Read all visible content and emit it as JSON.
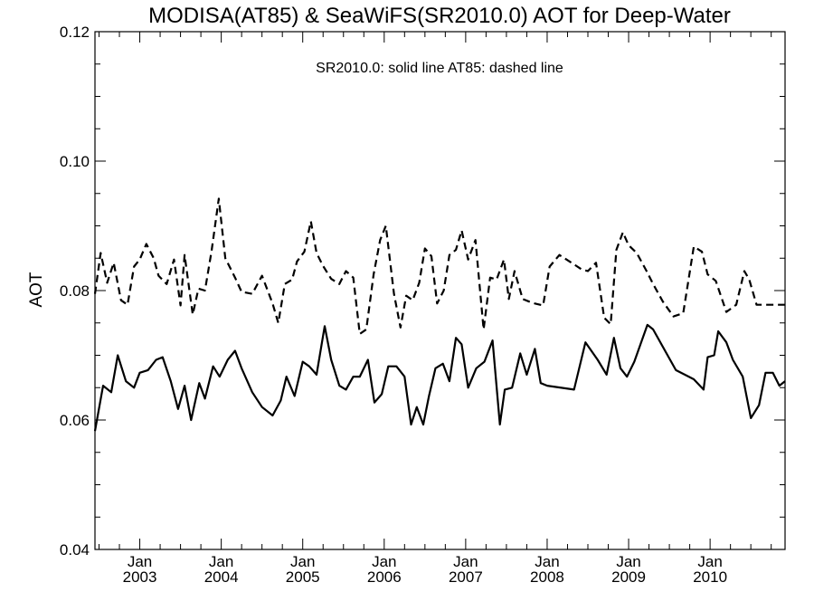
{
  "chart_data": {
    "type": "line",
    "title": "MODISA(AT85) & SeaWiFS(SR2010.0)  AOT for Deep-Water",
    "annotation": "SR2010.0: solid line   AT85: dashed line",
    "ylabel": "AOT",
    "xlabel": "",
    "x_unit": "years (decimal, 2003.0 = Jan 2003)",
    "xlim": [
      2002.45,
      2010.92
    ],
    "ylim": [
      0.04,
      0.12
    ],
    "yticks": [
      "0.04",
      "0.06",
      "0.08",
      "0.10",
      "0.12"
    ],
    "xticks": [
      {
        "x": 2003.0,
        "month": "Jan",
        "year": "2003"
      },
      {
        "x": 2004.0,
        "month": "Jan",
        "year": "2004"
      },
      {
        "x": 2005.0,
        "month": "Jan",
        "year": "2005"
      },
      {
        "x": 2006.0,
        "month": "Jan",
        "year": "2006"
      },
      {
        "x": 2007.0,
        "month": "Jan",
        "year": "2007"
      },
      {
        "x": 2008.0,
        "month": "Jan",
        "year": "2008"
      },
      {
        "x": 2009.0,
        "month": "Jan",
        "year": "2009"
      },
      {
        "x": 2010.0,
        "month": "Jan",
        "year": "2010"
      }
    ],
    "grid": false,
    "series": [
      {
        "style": "solid",
        "x": [
          2002.45,
          2002.55,
          2002.65,
          2002.73,
          2002.83,
          2002.93,
          2003.0,
          2003.1,
          2003.2,
          2003.28,
          2003.38,
          2003.47,
          2003.55,
          2003.63,
          2003.73,
          2003.8,
          2003.9,
          2003.98,
          2004.08,
          2004.17,
          2004.25,
          2004.38,
          2004.5,
          2004.63,
          2004.73,
          2004.8,
          2004.9,
          2005.0,
          2005.08,
          2005.17,
          2005.27,
          2005.35,
          2005.45,
          2005.53,
          2005.62,
          2005.7,
          2005.8,
          2005.88,
          2005.97,
          2006.05,
          2006.15,
          2006.25,
          2006.33,
          2006.4,
          2006.48,
          2006.55,
          2006.63,
          2006.72,
          2006.8,
          2006.88,
          2006.95,
          2007.03,
          2007.13,
          2007.23,
          2007.33,
          2007.42,
          2007.48,
          2007.57,
          2007.67,
          2007.75,
          2007.85,
          2007.92,
          2008.0,
          2008.33,
          2008.47,
          2008.62,
          2008.73,
          2008.82,
          2008.9,
          2008.98,
          2009.07,
          2009.23,
          2009.3,
          2009.58,
          2009.8,
          2009.92,
          2009.97,
          2010.05,
          2010.1,
          2010.2,
          2010.28,
          2010.4,
          2010.5,
          2010.6,
          2010.68,
          2010.77,
          2010.85,
          2010.92
        ],
        "y": [
          0.0583,
          0.0653,
          0.0643,
          0.07,
          0.066,
          0.065,
          0.0673,
          0.0677,
          0.0693,
          0.0697,
          0.066,
          0.0617,
          0.0653,
          0.06,
          0.0657,
          0.0633,
          0.0683,
          0.0667,
          0.0693,
          0.0707,
          0.068,
          0.0643,
          0.062,
          0.0607,
          0.063,
          0.0667,
          0.0637,
          0.069,
          0.0683,
          0.067,
          0.0745,
          0.0693,
          0.0653,
          0.0647,
          0.0667,
          0.0667,
          0.0693,
          0.0627,
          0.064,
          0.0683,
          0.0683,
          0.0667,
          0.0593,
          0.062,
          0.0593,
          0.0637,
          0.068,
          0.0687,
          0.066,
          0.0727,
          0.0717,
          0.065,
          0.068,
          0.069,
          0.0723,
          0.0593,
          0.0647,
          0.065,
          0.0703,
          0.067,
          0.071,
          0.0657,
          0.0653,
          0.0647,
          0.072,
          0.0693,
          0.067,
          0.0727,
          0.068,
          0.0667,
          0.069,
          0.0747,
          0.074,
          0.0677,
          0.0663,
          0.0647,
          0.0697,
          0.07,
          0.0737,
          0.072,
          0.0693,
          0.0667,
          0.0603,
          0.0623,
          0.0673,
          0.0673,
          0.0653,
          0.066
        ]
      },
      {
        "style": "dashed",
        "x": [
          2002.45,
          2002.52,
          2002.6,
          2002.68,
          2002.77,
          2002.85,
          2002.93,
          2003.0,
          2003.08,
          2003.17,
          2003.23,
          2003.33,
          2003.42,
          2003.5,
          2003.55,
          2003.65,
          2003.72,
          2003.8,
          2003.88,
          2003.97,
          2004.05,
          2004.17,
          2004.25,
          2004.38,
          2004.5,
          2004.63,
          2004.7,
          2004.78,
          2004.87,
          2004.93,
          2005.02,
          2005.1,
          2005.17,
          2005.25,
          2005.35,
          2005.45,
          2005.53,
          2005.62,
          2005.7,
          2005.78,
          2005.87,
          2005.95,
          2006.02,
          2006.12,
          2006.2,
          2006.27,
          2006.35,
          2006.43,
          2006.5,
          2006.58,
          2006.65,
          2006.73,
          2006.8,
          2006.88,
          2006.95,
          2007.03,
          2007.12,
          2007.22,
          2007.3,
          2007.38,
          2007.47,
          2007.53,
          2007.6,
          2007.7,
          2007.78,
          2007.85,
          2007.95,
          2008.03,
          2008.15,
          2008.3,
          2008.42,
          2008.5,
          2008.6,
          2008.7,
          2008.78,
          2008.85,
          2008.93,
          2009.0,
          2009.1,
          2009.22,
          2009.3,
          2009.42,
          2009.55,
          2009.67,
          2009.8,
          2009.9,
          2009.97,
          2010.07,
          2010.2,
          2010.32,
          2010.42,
          2010.48,
          2010.57,
          2010.65,
          2010.72,
          2010.8,
          2010.88,
          2010.92
        ],
        "y": [
          0.0795,
          0.0858,
          0.0812,
          0.0843,
          0.0785,
          0.0778,
          0.0837,
          0.0848,
          0.0872,
          0.085,
          0.0823,
          0.081,
          0.0848,
          0.0777,
          0.0855,
          0.0763,
          0.0803,
          0.08,
          0.086,
          0.0942,
          0.085,
          0.082,
          0.0798,
          0.0795,
          0.0823,
          0.078,
          0.075,
          0.081,
          0.0817,
          0.0845,
          0.086,
          0.0907,
          0.0858,
          0.0838,
          0.0818,
          0.081,
          0.083,
          0.082,
          0.0733,
          0.074,
          0.0825,
          0.0878,
          0.09,
          0.0795,
          0.0743,
          0.0792,
          0.0785,
          0.0812,
          0.0865,
          0.0853,
          0.078,
          0.08,
          0.0855,
          0.0863,
          0.0893,
          0.0848,
          0.0878,
          0.074,
          0.082,
          0.0817,
          0.0848,
          0.0787,
          0.083,
          0.0787,
          0.0783,
          0.078,
          0.0777,
          0.0837,
          0.0855,
          0.0843,
          0.0833,
          0.083,
          0.0843,
          0.0758,
          0.0748,
          0.0863,
          0.089,
          0.087,
          0.0858,
          0.083,
          0.081,
          0.0783,
          0.076,
          0.0765,
          0.0868,
          0.086,
          0.0825,
          0.0815,
          0.0767,
          0.0778,
          0.083,
          0.0817,
          0.0778,
          0.0778,
          0.0778,
          0.0778,
          0.0778,
          0.0778
        ]
      }
    ]
  }
}
